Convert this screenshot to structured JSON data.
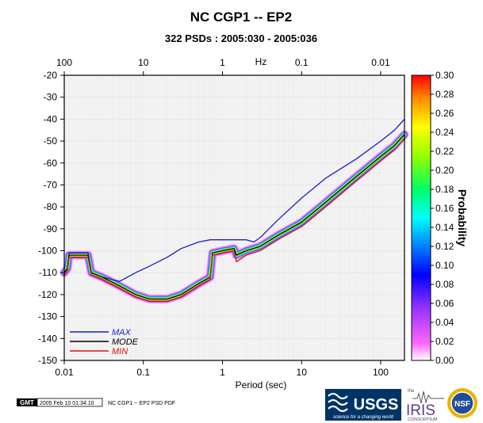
{
  "chart_data": {
    "type": "line",
    "title": "NC CGP1 -- EP2",
    "subtitle": "322 PSDs : 2005:030 - 2005:036",
    "xlabel": "Period (sec)",
    "x2label": "Hz",
    "ylabel": "",
    "colorbar_label": "Probability",
    "x_scale": "log",
    "xlim": [
      0.01,
      200
    ],
    "ylim": [
      -150,
      -20
    ],
    "grid": true,
    "legend_position": "bottom-left",
    "x_ticks": [
      {
        "value": 0.01,
        "label": "0.01"
      },
      {
        "value": 0.1,
        "label": "0.1"
      },
      {
        "value": 1,
        "label": "1"
      },
      {
        "value": 10,
        "label": "10"
      },
      {
        "value": 100,
        "label": "100"
      }
    ],
    "x2_ticks": [
      {
        "value": 0.01,
        "label": "100"
      },
      {
        "value": 0.1,
        "label": "10"
      },
      {
        "value": 1,
        "label": "1"
      },
      {
        "value": 10,
        "label": "0.1"
      },
      {
        "value": 100,
        "label": "0.01"
      }
    ],
    "y_ticks": [
      -20,
      -30,
      -40,
      -50,
      -60,
      -70,
      -80,
      -90,
      -100,
      -110,
      -120,
      -130,
      -140,
      -150
    ],
    "colorbar": {
      "range": [
        0,
        0.3
      ],
      "ticks": [
        "0.00",
        "0.02",
        "0.04",
        "0.06",
        "0.08",
        "0.10",
        "0.12",
        "0.14",
        "0.16",
        "0.18",
        "0.20",
        "0.22",
        "0.24",
        "0.26",
        "0.28",
        "0.30"
      ]
    },
    "series": [
      {
        "name": "MAX",
        "color": "#1a1acc",
        "x": [
          0.01,
          0.011,
          0.0115,
          0.02,
          0.022,
          0.03,
          0.05,
          0.08,
          0.12,
          0.2,
          0.3,
          0.5,
          0.7,
          1.0,
          1.5,
          2.0,
          2.5,
          3.0,
          5,
          10,
          20,
          50,
          100,
          150,
          200
        ],
        "y": [
          -110,
          -108,
          -101,
          -101,
          -110,
          -112,
          -114,
          -110,
          -107,
          -103,
          -99,
          -96,
          -95,
          -95,
          -95,
          -95,
          -96,
          -94,
          -86,
          -76,
          -67,
          -58,
          -50,
          -45,
          -40
        ]
      },
      {
        "name": "MODE",
        "color": "#000000",
        "x": [
          0.01,
          0.011,
          0.0115,
          0.02,
          0.022,
          0.03,
          0.05,
          0.08,
          0.12,
          0.2,
          0.3,
          0.5,
          0.7,
          0.75,
          1.0,
          1.4,
          1.5,
          2.0,
          3.0,
          5,
          10,
          20,
          50,
          100,
          150,
          200
        ],
        "y": [
          -110,
          -108,
          -102,
          -102,
          -110,
          -112,
          -116,
          -120,
          -122,
          -122,
          -120,
          -115,
          -112,
          -101,
          -100,
          -99,
          -102,
          -100,
          -98,
          -93,
          -87,
          -78,
          -66,
          -57,
          -52,
          -47
        ]
      },
      {
        "name": "MIN",
        "color": "#dd1111",
        "x": [
          0.01,
          0.011,
          0.0115,
          0.02,
          0.022,
          0.03,
          0.05,
          0.08,
          0.12,
          0.2,
          0.3,
          0.5,
          0.7,
          0.75,
          1.0,
          1.4,
          1.5,
          2.0,
          3.0,
          5,
          10,
          20,
          50,
          100,
          150,
          200
        ],
        "y": [
          -111,
          -109,
          -103,
          -103,
          -111,
          -113,
          -117,
          -121,
          -123,
          -123,
          -121,
          -116,
          -113,
          -102,
          -101,
          -100,
          -105,
          -102,
          -100,
          -95,
          -89,
          -80,
          -68,
          -59,
          -54,
          -49
        ]
      }
    ]
  },
  "footer": {
    "gmt_logo": "GMT",
    "timestamp": "2005 Feb 10 01:34:10",
    "caption": "NC CGP1 -- EP2 PSD PDF"
  },
  "logos": {
    "usgs": "USGS",
    "usgs_tagline": "science for a changing world",
    "iris": "IRIS",
    "iris_small": "the",
    "iris_consortium": "CONSORTIUM",
    "nsf": "NSF"
  },
  "colors": {
    "plot_background": "#f2f2f2",
    "grid": "#dddddd",
    "max_line": "#1a1acc",
    "mode_line": "#000000",
    "min_line": "#dd1111",
    "usgs_blue": "#003366",
    "iris_purple": "#5b3a8c",
    "nsf_gold": "#d8a200"
  }
}
